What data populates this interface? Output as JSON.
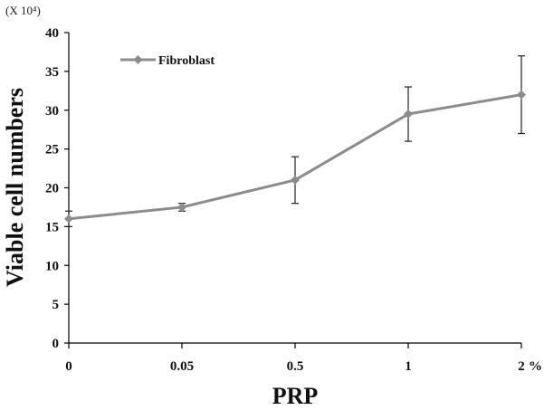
{
  "chart_data": {
    "type": "line",
    "title": "",
    "xlabel": "PRP",
    "ylabel": "Viable cell numbers",
    "y_unit": "(X 10⁴)",
    "x_unit": "%",
    "categories": [
      "0",
      "0.05",
      "0.5",
      "1",
      "2"
    ],
    "ylim": [
      0,
      40
    ],
    "yticks": [
      "0",
      "5",
      "10",
      "15",
      "20",
      "25",
      "30",
      "35",
      "40"
    ],
    "legend_position": "top-left",
    "grid": false,
    "series": [
      {
        "name": "Fibroblast",
        "color": "#8c8c8c",
        "marker": "diamond",
        "values": [
          16,
          17.5,
          21,
          29.5,
          32
        ],
        "error": [
          1,
          0.5,
          3,
          3.5,
          5
        ]
      }
    ]
  }
}
